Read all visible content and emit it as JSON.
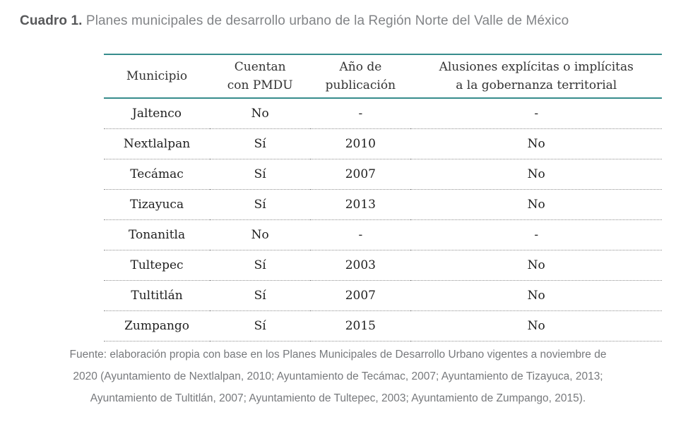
{
  "caption": {
    "label": "Cuadro 1.",
    "text": "Planes municipales de desarrollo urbano de la Región Norte del Valle de México"
  },
  "table": {
    "columns": [
      {
        "label_lines": [
          "Municipio"
        ]
      },
      {
        "label_lines": [
          "Cuentan",
          "con PMDU"
        ]
      },
      {
        "label_lines": [
          "Año de",
          "publicación"
        ]
      },
      {
        "label_lines": [
          "Alusiones explícitas o implícitas",
          "a la gobernanza territorial"
        ]
      }
    ],
    "rows": [
      [
        "Jaltenco",
        "No",
        "-",
        "-"
      ],
      [
        "Nextlalpan",
        "Sí",
        "2010",
        "No"
      ],
      [
        "Tecámac",
        "Sí",
        "2007",
        "No"
      ],
      [
        "Tizayuca",
        "Sí",
        "2013",
        "No"
      ],
      [
        "Tonanitla",
        "No",
        "-",
        "-"
      ],
      [
        "Tultepec",
        "Sí",
        "2003",
        "No"
      ],
      [
        "Tultitlán",
        "Sí",
        "2007",
        "No"
      ],
      [
        "Zumpango",
        "Sí",
        "2015",
        "No"
      ]
    ]
  },
  "source": {
    "lines": [
      "Fuente: elaboración propia con base en los Planes Municipales de Desarrollo Urbano vigentes a noviembre de",
      "2020 (Ayuntamiento de Nextlalpan, 2010; Ayuntamiento de Tecámac, 2007; Ayuntamiento de Tizayuca, 2013;",
      "Ayuntamiento de Tultitlán, 2007; Ayuntamiento de Tultepec, 2003; Ayuntamiento de Zumpango, 2015)."
    ]
  },
  "colors": {
    "accent_teal": "#378c8c",
    "caption_label": "#57585a",
    "caption_text": "#828487",
    "table_text": "#1f1f1f",
    "source_text": "#77797c",
    "dotted_separator": "#8f8f8f"
  }
}
